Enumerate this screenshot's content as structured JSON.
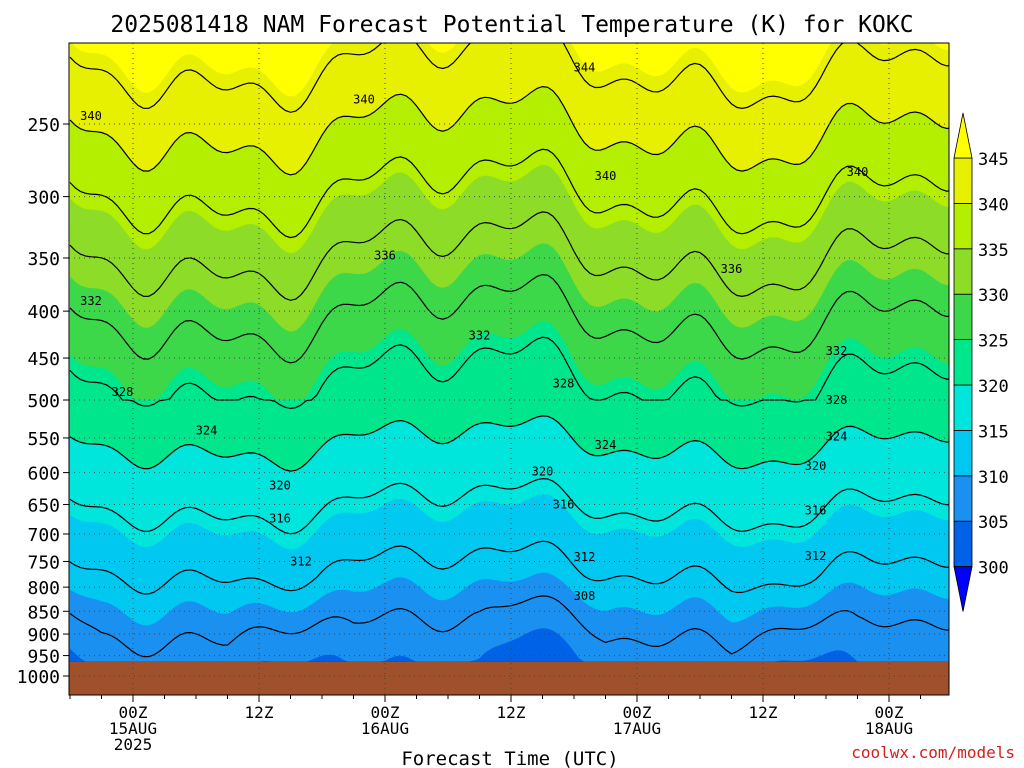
{
  "title": "2025081418 NAM Forecast Potential Temperature (K) for KOKC",
  "credit": "coolwx.com/models",
  "chart_data": {
    "type": "heatmap",
    "title": "2025081418 NAM Forecast Potential Temperature (K) for KOKC",
    "xlabel": "Forecast Time (UTC)",
    "ylabel": "",
    "x_range_hours": [
      -6,
      78
    ],
    "x_ticks": [
      {
        "hour": 0,
        "lines": [
          "00Z",
          "15AUG",
          "2025"
        ]
      },
      {
        "hour": 12,
        "lines": [
          "12Z"
        ]
      },
      {
        "hour": 24,
        "lines": [
          "00Z",
          "16AUG"
        ]
      },
      {
        "hour": 36,
        "lines": [
          "12Z"
        ]
      },
      {
        "hour": 48,
        "lines": [
          "00Z",
          "17AUG"
        ]
      },
      {
        "hour": 60,
        "lines": [
          "12Z"
        ]
      },
      {
        "hour": 72,
        "lines": [
          "00Z",
          "18AUG"
        ]
      }
    ],
    "y_ticks": [
      250,
      300,
      350,
      400,
      450,
      500,
      550,
      600,
      650,
      700,
      750,
      800,
      850,
      900,
      950,
      1000
    ],
    "y_scale": "log-pressure",
    "y_range_hpa": [
      200,
      1050
    ],
    "surface_pressure_hpa": 965,
    "colorbar_levels": [
      300,
      305,
      310,
      315,
      320,
      325,
      330,
      335,
      340,
      345
    ],
    "colorbar_labels": [
      "345",
      "340",
      "335",
      "330",
      "325",
      "320",
      "315",
      "310",
      "305",
      "300"
    ],
    "colors": [
      "#0000ff",
      "#0062e6",
      "#1a90f0",
      "#00c8f0",
      "#00e6dc",
      "#00e68c",
      "#3cd84a",
      "#8cdc28",
      "#b4ee00",
      "#e6f000",
      "#ffff00"
    ],
    "contour_levels": [
      308,
      312,
      316,
      320,
      324,
      328,
      332,
      336,
      340,
      344
    ],
    "contour_labels": [
      {
        "text": "344",
        "hour": 43,
        "hpa": 217
      },
      {
        "text": "340",
        "hour": -4,
        "hpa": 245
      },
      {
        "text": "340",
        "hour": 22,
        "hpa": 235
      },
      {
        "text": "340",
        "hour": 45,
        "hpa": 285
      },
      {
        "text": "340",
        "hour": 69,
        "hpa": 282
      },
      {
        "text": "336",
        "hour": 24,
        "hpa": 348
      },
      {
        "text": "336",
        "hour": 57,
        "hpa": 360
      },
      {
        "text": "332",
        "hour": -4,
        "hpa": 390
      },
      {
        "text": "332",
        "hour": 33,
        "hpa": 425
      },
      {
        "text": "332",
        "hour": 67,
        "hpa": 442
      },
      {
        "text": "328",
        "hour": -1,
        "hpa": 490
      },
      {
        "text": "328",
        "hour": 41,
        "hpa": 480
      },
      {
        "text": "328",
        "hour": 67,
        "hpa": 500
      },
      {
        "text": "324",
        "hour": 7,
        "hpa": 540
      },
      {
        "text": "324",
        "hour": 45,
        "hpa": 560
      },
      {
        "text": "324",
        "hour": 67,
        "hpa": 548
      },
      {
        "text": "320",
        "hour": 14,
        "hpa": 620
      },
      {
        "text": "320",
        "hour": 39,
        "hpa": 598
      },
      {
        "text": "320",
        "hour": 65,
        "hpa": 590
      },
      {
        "text": "316",
        "hour": 14,
        "hpa": 673
      },
      {
        "text": "316",
        "hour": 41,
        "hpa": 650
      },
      {
        "text": "316",
        "hour": 65,
        "hpa": 660
      },
      {
        "text": "312",
        "hour": 16,
        "hpa": 750
      },
      {
        "text": "312",
        "hour": 43,
        "hpa": 742
      },
      {
        "text": "312",
        "hour": 65,
        "hpa": 740
      },
      {
        "text": "308",
        "hour": 43,
        "hpa": 818
      }
    ]
  }
}
